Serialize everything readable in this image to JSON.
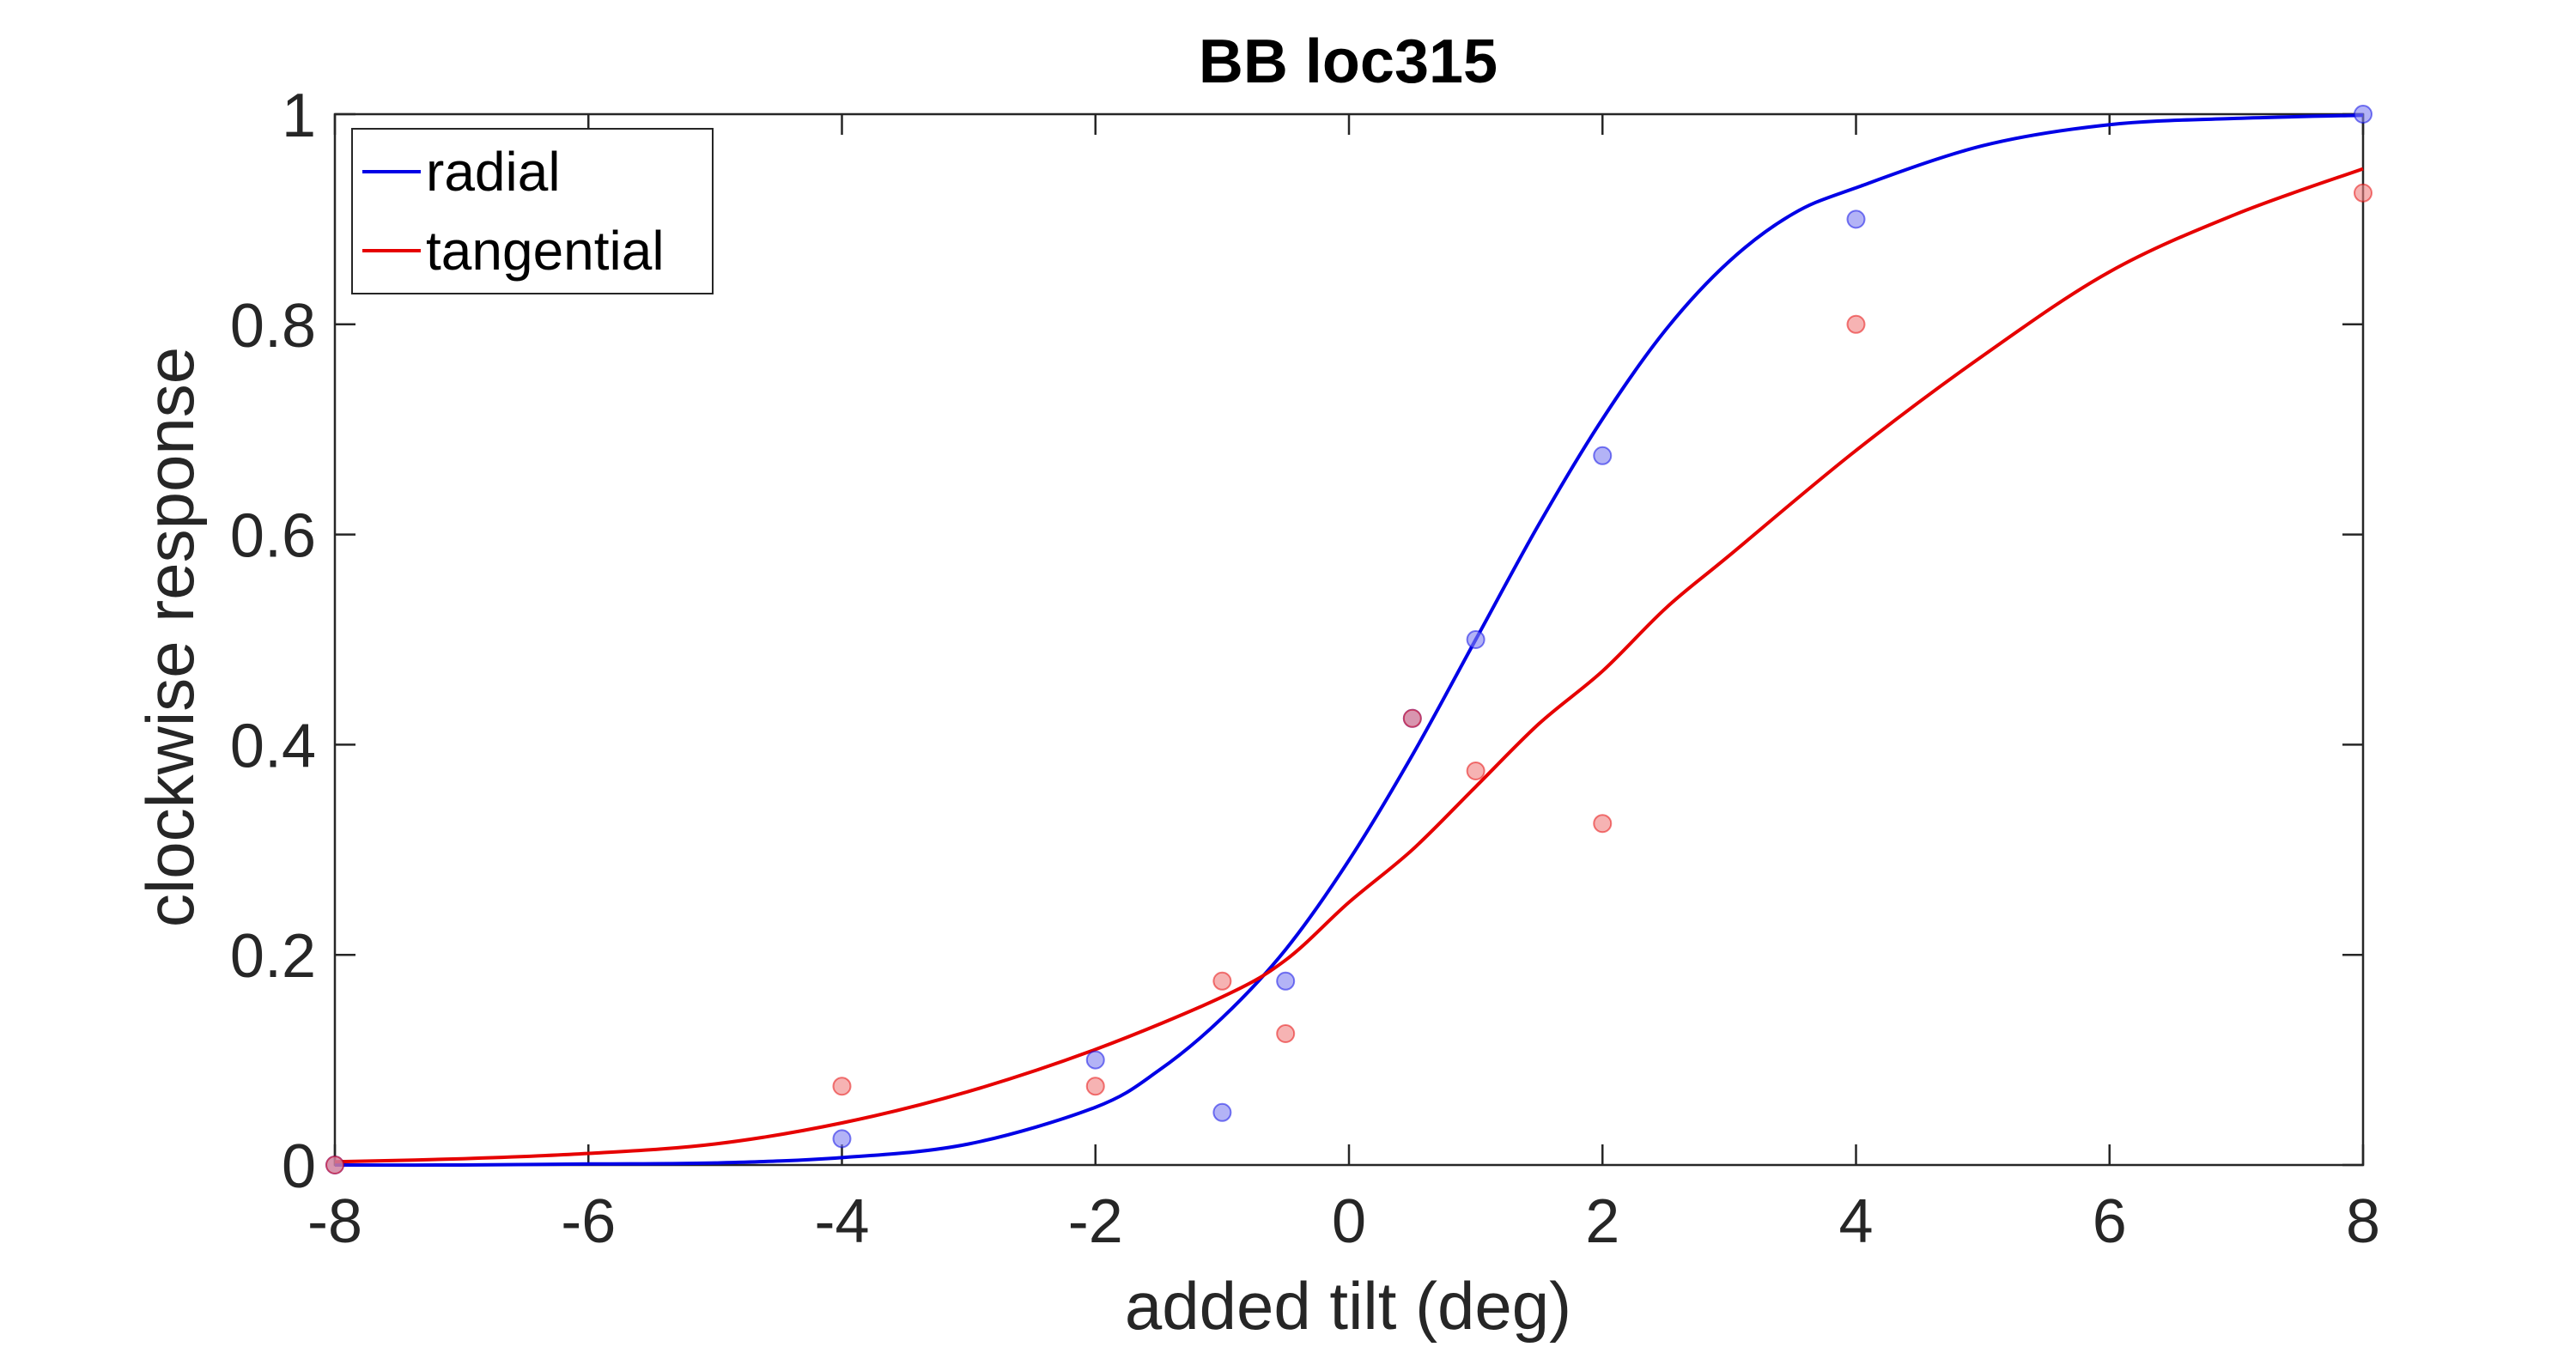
{
  "chart_data": {
    "type": "line",
    "title": "BB loc315",
    "xlabel": "added tilt (deg)",
    "ylabel": "clockwise response",
    "xlim": [
      -8,
      8
    ],
    "ylim": [
      0,
      1
    ],
    "xticks": [
      "-8",
      "-6",
      "-4",
      "-2",
      "0",
      "2",
      "4",
      "6",
      "8"
    ],
    "yticks": [
      "0",
      "0.2",
      "0.4",
      "0.6",
      "0.8",
      "1"
    ],
    "grid": false,
    "legend": "top-left",
    "series": [
      {
        "name": "radial",
        "color": "#0000e6",
        "marker_color": "#8080f0",
        "points": [
          {
            "x": -8,
            "y": 0.0
          },
          {
            "x": -4,
            "y": 0.025
          },
          {
            "x": -2,
            "y": 0.1
          },
          {
            "x": -1,
            "y": 0.05
          },
          {
            "x": -0.5,
            "y": 0.175
          },
          {
            "x": 0.5,
            "y": 0.425
          },
          {
            "x": 1,
            "y": 0.5
          },
          {
            "x": 2,
            "y": 0.675
          },
          {
            "x": 4,
            "y": 0.9
          },
          {
            "x": 8,
            "y": 1.0
          }
        ],
        "fit_curve": [
          {
            "x": -8,
            "y": 0.0
          },
          {
            "x": -7,
            "y": 0.0
          },
          {
            "x": -6,
            "y": 0.001
          },
          {
            "x": -5,
            "y": 0.002
          },
          {
            "x": -4,
            "y": 0.007
          },
          {
            "x": -3,
            "y": 0.02
          },
          {
            "x": -2,
            "y": 0.055
          },
          {
            "x": -1.5,
            "y": 0.09
          },
          {
            "x": -1,
            "y": 0.14
          },
          {
            "x": -0.5,
            "y": 0.205
          },
          {
            "x": 0,
            "y": 0.29
          },
          {
            "x": 0.5,
            "y": 0.39
          },
          {
            "x": 1,
            "y": 0.5
          },
          {
            "x": 1.5,
            "y": 0.61
          },
          {
            "x": 2,
            "y": 0.71
          },
          {
            "x": 2.5,
            "y": 0.795
          },
          {
            "x": 3,
            "y": 0.86
          },
          {
            "x": 3.5,
            "y": 0.905
          },
          {
            "x": 4,
            "y": 0.93
          },
          {
            "x": 5,
            "y": 0.97
          },
          {
            "x": 6,
            "y": 0.99
          },
          {
            "x": 7,
            "y": 0.996
          },
          {
            "x": 8,
            "y": 0.999
          }
        ]
      },
      {
        "name": "tangential",
        "color": "#e60000",
        "marker_color": "#f08080",
        "points": [
          {
            "x": -8,
            "y": 0.0
          },
          {
            "x": -4,
            "y": 0.075
          },
          {
            "x": -2,
            "y": 0.075
          },
          {
            "x": -1,
            "y": 0.175
          },
          {
            "x": -0.5,
            "y": 0.125
          },
          {
            "x": 0.5,
            "y": 0.425
          },
          {
            "x": 1,
            "y": 0.375
          },
          {
            "x": 2,
            "y": 0.325
          },
          {
            "x": 4,
            "y": 0.8
          },
          {
            "x": 8,
            "y": 0.925
          }
        ],
        "fit_curve": [
          {
            "x": -8,
            "y": 0.003
          },
          {
            "x": -7,
            "y": 0.006
          },
          {
            "x": -6,
            "y": 0.011
          },
          {
            "x": -5,
            "y": 0.02
          },
          {
            "x": -4,
            "y": 0.04
          },
          {
            "x": -3,
            "y": 0.07
          },
          {
            "x": -2,
            "y": 0.11
          },
          {
            "x": -1,
            "y": 0.16
          },
          {
            "x": -0.5,
            "y": 0.195
          },
          {
            "x": 0,
            "y": 0.25
          },
          {
            "x": 0.5,
            "y": 0.3
          },
          {
            "x": 1,
            "y": 0.36
          },
          {
            "x": 1.5,
            "y": 0.42
          },
          {
            "x": 2,
            "y": 0.47
          },
          {
            "x": 2.5,
            "y": 0.53
          },
          {
            "x": 3,
            "y": 0.58
          },
          {
            "x": 4,
            "y": 0.68
          },
          {
            "x": 5,
            "y": 0.77
          },
          {
            "x": 6,
            "y": 0.85
          },
          {
            "x": 7,
            "y": 0.905
          },
          {
            "x": 8,
            "y": 0.948
          }
        ]
      }
    ]
  }
}
